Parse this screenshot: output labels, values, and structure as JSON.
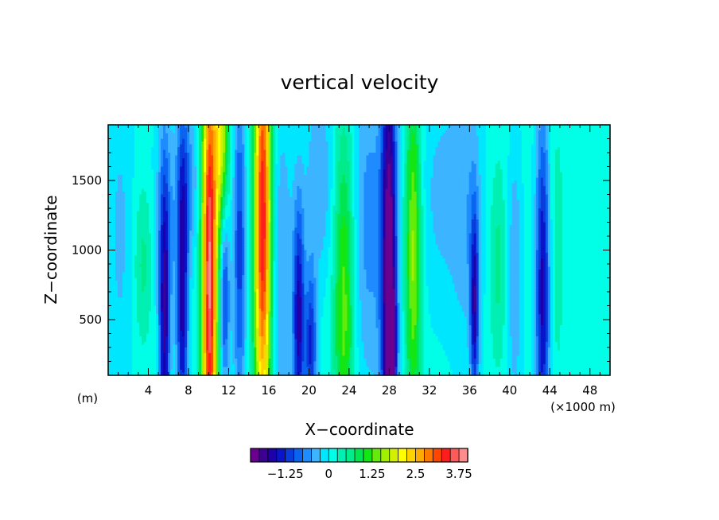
{
  "chart_data": {
    "type": "heatmap",
    "title": "vertical velocity",
    "xlabel": "X−coordinate",
    "ylabel": "Z−coordinate",
    "x_unit_left": "(m)",
    "x_unit_right": "(×1000 m)",
    "xlim": [
      0,
      50
    ],
    "ylim": [
      100,
      1900
    ],
    "x_ticks": [
      4,
      8,
      12,
      16,
      20,
      24,
      28,
      32,
      36,
      40,
      44,
      48
    ],
    "x_tick_labels": [
      "4",
      "8",
      "12",
      "16",
      "20",
      "24",
      "28",
      "32",
      "36",
      "40",
      "44",
      "48"
    ],
    "y_ticks": [
      500,
      1000,
      1500
    ],
    "y_tick_labels": [
      "500",
      "1000",
      "1500"
    ],
    "background_value": 0.1,
    "features": [
      {
        "x": 1.2,
        "w": 1.0,
        "amp": -0.4,
        "z0": 1100,
        "hz": 900
      },
      {
        "x": 3.5,
        "w": 0.7,
        "amp": 0.5,
        "z0": 900,
        "hz": 400
      },
      {
        "x": 5.6,
        "w": 0.35,
        "amp": -1.7,
        "z0": 400,
        "hz": 800
      },
      {
        "x": 5.8,
        "w": 0.9,
        "amp": -0.6,
        "z0": 1200,
        "hz": 600
      },
      {
        "x": 7.4,
        "w": 0.4,
        "amp": -1.7,
        "z0": 700,
        "hz": 900
      },
      {
        "x": 8.2,
        "w": 0.7,
        "amp": -0.6,
        "z0": 1500,
        "hz": 400
      },
      {
        "x": 10.1,
        "w": 0.55,
        "amp": 3.7,
        "z0": 800,
        "hz": 1300
      },
      {
        "x": 11.3,
        "w": 0.5,
        "amp": 1.7,
        "z0": 1800,
        "hz": 500
      },
      {
        "x": 11.6,
        "w": 0.35,
        "amp": -1.3,
        "z0": 700,
        "hz": 500
      },
      {
        "x": 13.1,
        "w": 0.45,
        "amp": -1.2,
        "z0": 1000,
        "hz": 900
      },
      {
        "x": 15.4,
        "w": 0.6,
        "amp": 3.4,
        "z0": 1200,
        "hz": 1200
      },
      {
        "x": 17.3,
        "w": 0.8,
        "amp": -0.6,
        "z0": 800,
        "hz": 900
      },
      {
        "x": 19.0,
        "w": 0.4,
        "amp": -1.7,
        "z0": 500,
        "hz": 600
      },
      {
        "x": 20.2,
        "w": 0.4,
        "amp": -1.4,
        "z0": 300,
        "hz": 400
      },
      {
        "x": 21.0,
        "w": 1.0,
        "amp": -0.6,
        "z0": 1500,
        "hz": 500
      },
      {
        "x": 23.5,
        "w": 0.7,
        "amp": 1.3,
        "z0": 600,
        "hz": 900
      },
      {
        "x": 26.0,
        "w": 1.2,
        "amp": -0.7,
        "z0": 1200,
        "hz": 900
      },
      {
        "x": 28.0,
        "w": 0.55,
        "amp": -2.4,
        "z0": 700,
        "hz": 1400
      },
      {
        "x": 28.3,
        "w": 0.25,
        "amp": -1.5,
        "z0": 350,
        "hz": 220
      },
      {
        "x": 30.4,
        "w": 0.55,
        "amp": 1.5,
        "z0": 1000,
        "hz": 900
      },
      {
        "x": 33.0,
        "w": 1.5,
        "amp": -0.4,
        "z0": 1400,
        "hz": 600
      },
      {
        "x": 35.8,
        "w": 1.2,
        "amp": -0.5,
        "z0": 1300,
        "hz": 800
      },
      {
        "x": 36.5,
        "w": 0.3,
        "amp": -1.6,
        "z0": 600,
        "hz": 500
      },
      {
        "x": 38.8,
        "w": 0.6,
        "amp": 0.5,
        "z0": 900,
        "hz": 500
      },
      {
        "x": 40.5,
        "w": 0.5,
        "amp": -0.6,
        "z0": 800,
        "hz": 700
      },
      {
        "x": 43.3,
        "w": 0.5,
        "amp": -1.7,
        "z0": 700,
        "hz": 900
      },
      {
        "x": 44.6,
        "w": 0.6,
        "amp": 0.3,
        "z0": 1000,
        "hz": 700
      }
    ],
    "colorbar": {
      "min": -2.25,
      "max": 4.0,
      "step": 0.25,
      "colors": [
        "#6a0090",
        "#3c0096",
        "#1e00aa",
        "#0a14c8",
        "#0a3cdc",
        "#0a64f0",
        "#1e8cff",
        "#3cb4ff",
        "#00e6ff",
        "#00ffe6",
        "#00f0b4",
        "#00eb8c",
        "#00e650",
        "#14e614",
        "#64eb0a",
        "#a0f000",
        "#d2f000",
        "#ffff00",
        "#ffd200",
        "#ffaa00",
        "#ff7800",
        "#ff4600",
        "#ff1e1e",
        "#ff5a5a",
        "#ff8c8c"
      ],
      "tick_values": [
        -1.25,
        0,
        1.25,
        2.5,
        3.75
      ],
      "tick_labels": [
        "−1.25",
        "0",
        "1.25",
        "2.5",
        "3.75"
      ]
    }
  }
}
